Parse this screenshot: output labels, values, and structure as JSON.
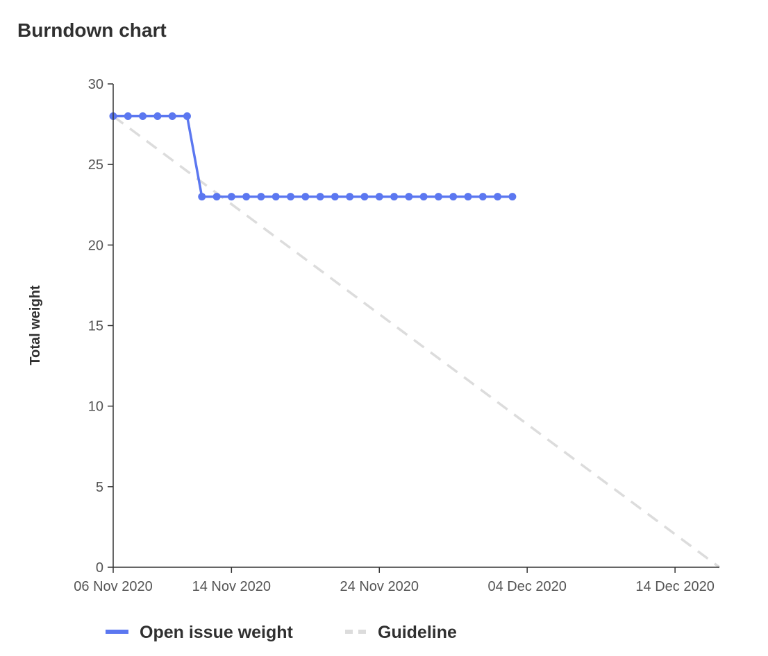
{
  "title": "Burndown chart",
  "colors": {
    "open": "#5b77f0",
    "guide": "#dcdcdc",
    "axis": "#333333",
    "text": "#303030"
  },
  "chart_data": {
    "type": "line",
    "title": "Burndown chart",
    "xlabel": "",
    "ylabel": "Total weight",
    "xlim": [
      "2020-11-06",
      "2020-12-17"
    ],
    "ylim": [
      0,
      30
    ],
    "yticks": [
      0,
      5,
      10,
      15,
      20,
      25,
      30
    ],
    "xticks": [
      "2020-11-06",
      "2020-11-14",
      "2020-11-24",
      "2020-12-04",
      "2020-12-14"
    ],
    "xtick_labels": [
      "06 Nov 2020",
      "14 Nov 2020",
      "24 Nov 2020",
      "04 Dec 2020",
      "14 Dec 2020"
    ],
    "grid": false,
    "legend": "bottom-left",
    "series": [
      {
        "name": "Open issue weight",
        "style": "solid-markers",
        "x": [
          "2020-11-06",
          "2020-11-07",
          "2020-11-08",
          "2020-11-09",
          "2020-11-10",
          "2020-11-11",
          "2020-11-12",
          "2020-11-13",
          "2020-11-14",
          "2020-11-15",
          "2020-11-16",
          "2020-11-17",
          "2020-11-18",
          "2020-11-19",
          "2020-11-20",
          "2020-11-21",
          "2020-11-22",
          "2020-11-23",
          "2020-11-24",
          "2020-11-25",
          "2020-11-26",
          "2020-11-27",
          "2020-11-28",
          "2020-11-29",
          "2020-11-30",
          "2020-12-01",
          "2020-12-02",
          "2020-12-03"
        ],
        "y": [
          28,
          28,
          28,
          28,
          28,
          28,
          23,
          23,
          23,
          23,
          23,
          23,
          23,
          23,
          23,
          23,
          23,
          23,
          23,
          23,
          23,
          23,
          23,
          23,
          23,
          23,
          23,
          23
        ]
      },
      {
        "name": "Guideline",
        "style": "dashed",
        "x": [
          "2020-11-06",
          "2020-12-17"
        ],
        "y": [
          28,
          0
        ]
      }
    ]
  }
}
